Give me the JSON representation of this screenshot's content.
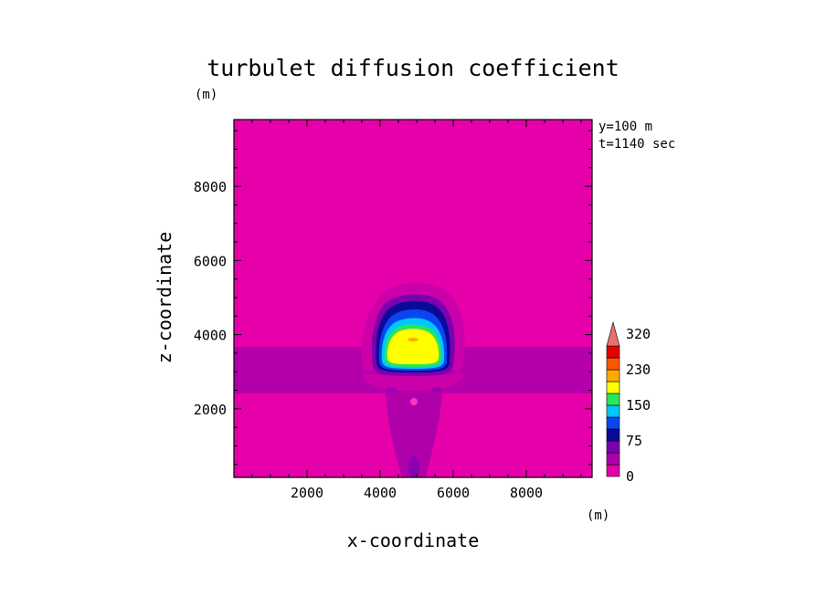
{
  "chart_data": {
    "type": "heatmap",
    "title": "turbulet diffusion coefficient",
    "xlabel": "x-coordinate",
    "ylabel": "z-coordinate",
    "x_unit": "(m)",
    "y_unit": "(m)",
    "xlim": [
      0,
      9800
    ],
    "ylim": [
      150,
      9800
    ],
    "x_ticks": [
      "2000",
      "4000",
      "6000",
      "8000"
    ],
    "y_ticks": [
      "2000",
      "4000",
      "6000",
      "8000"
    ],
    "info_lines": [
      "y=100 m",
      "t=1140 sec"
    ],
    "colorbar": {
      "labels": [
        "0",
        "75",
        "150",
        "230",
        "320"
      ],
      "colors": [
        "#e600aa",
        "#aa00aa",
        "#7a00b0",
        "#0a0a9a",
        "#0a46f0",
        "#00c8ff",
        "#28e65a",
        "#ffff00",
        "#ffaa00",
        "#ff5500",
        "#e60000",
        "#e87070"
      ],
      "extend": "max"
    },
    "background_value": 0,
    "plume": {
      "band_z": [
        2450,
        3650
      ],
      "dome_center_x": 4950,
      "dome_base_z": 3000,
      "dome_top_z": 4650,
      "max_region_value": "150-230"
    }
  }
}
